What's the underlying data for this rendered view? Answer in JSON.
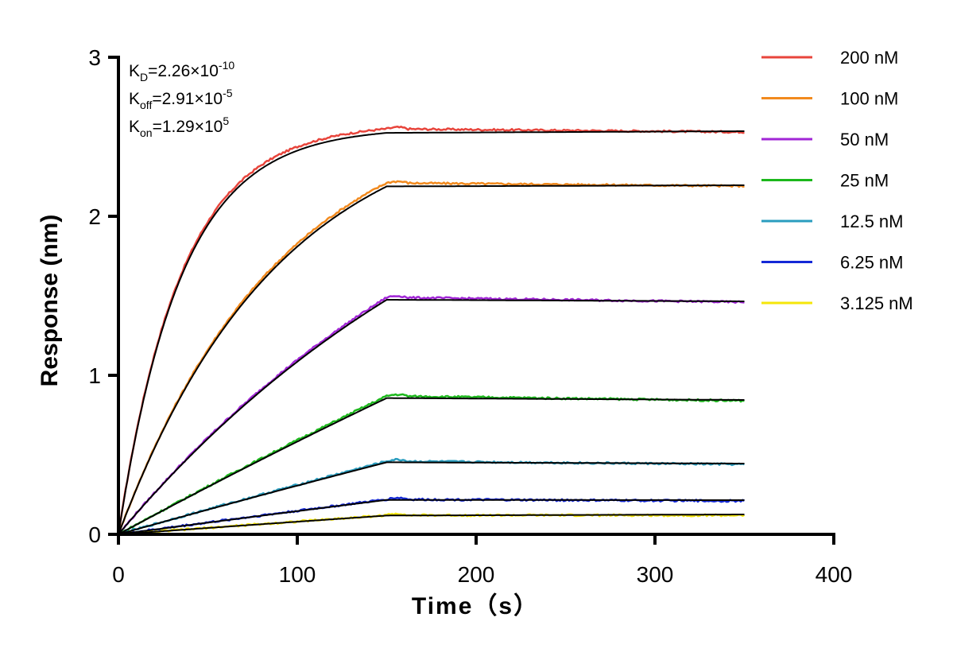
{
  "chart_data": {
    "type": "line",
    "title": "",
    "xlabel": "Time（s）",
    "ylabel": "Response (nm)",
    "xlim": [
      0,
      400
    ],
    "ylim": [
      0,
      3
    ],
    "xticks": [
      0,
      100,
      200,
      300,
      400
    ],
    "yticks": [
      0,
      1,
      2,
      3
    ],
    "grid": false,
    "legend_position": "top-right",
    "association_end_s": 150,
    "end_time_s": 350,
    "annotations": {
      "kd": {
        "base": "K",
        "sub": "D",
        "value": "=2.26×10",
        "exp": "-10"
      },
      "koff": {
        "base": "K",
        "sub": "off",
        "value": "=2.91×10",
        "exp": "-5"
      },
      "kon": {
        "base": "K",
        "sub": "on",
        "value": "=1.29×10",
        "exp": "5"
      }
    },
    "fit_color": "#000000",
    "series": [
      {
        "name": "200 nM",
        "color": "#e8453c",
        "plateau": 2.55,
        "final": 2.53,
        "tau": 35
      },
      {
        "name": "100 nM",
        "color": "#f28a1e",
        "plateau": 2.21,
        "final": 2.19,
        "tau": 90
      },
      {
        "name": "50 nM",
        "color": "#a126d6",
        "plateau": 1.49,
        "final": 1.46,
        "tau": 230
      },
      {
        "name": "25 nM",
        "color": "#1cb81c",
        "plateau": 0.87,
        "final": 0.84,
        "tau": 1200
      },
      {
        "name": "12.5 nM",
        "color": "#2a9dbf",
        "plateau": 0.46,
        "final": 0.44,
        "tau": 1800
      },
      {
        "name": "6.25 nM",
        "color": "#1428d6",
        "plateau": 0.22,
        "final": 0.21,
        "tau": 2500
      },
      {
        "name": "3.125 nM",
        "color": "#f5e60a",
        "plateau": 0.12,
        "final": 0.12,
        "tau": 3000
      }
    ]
  }
}
